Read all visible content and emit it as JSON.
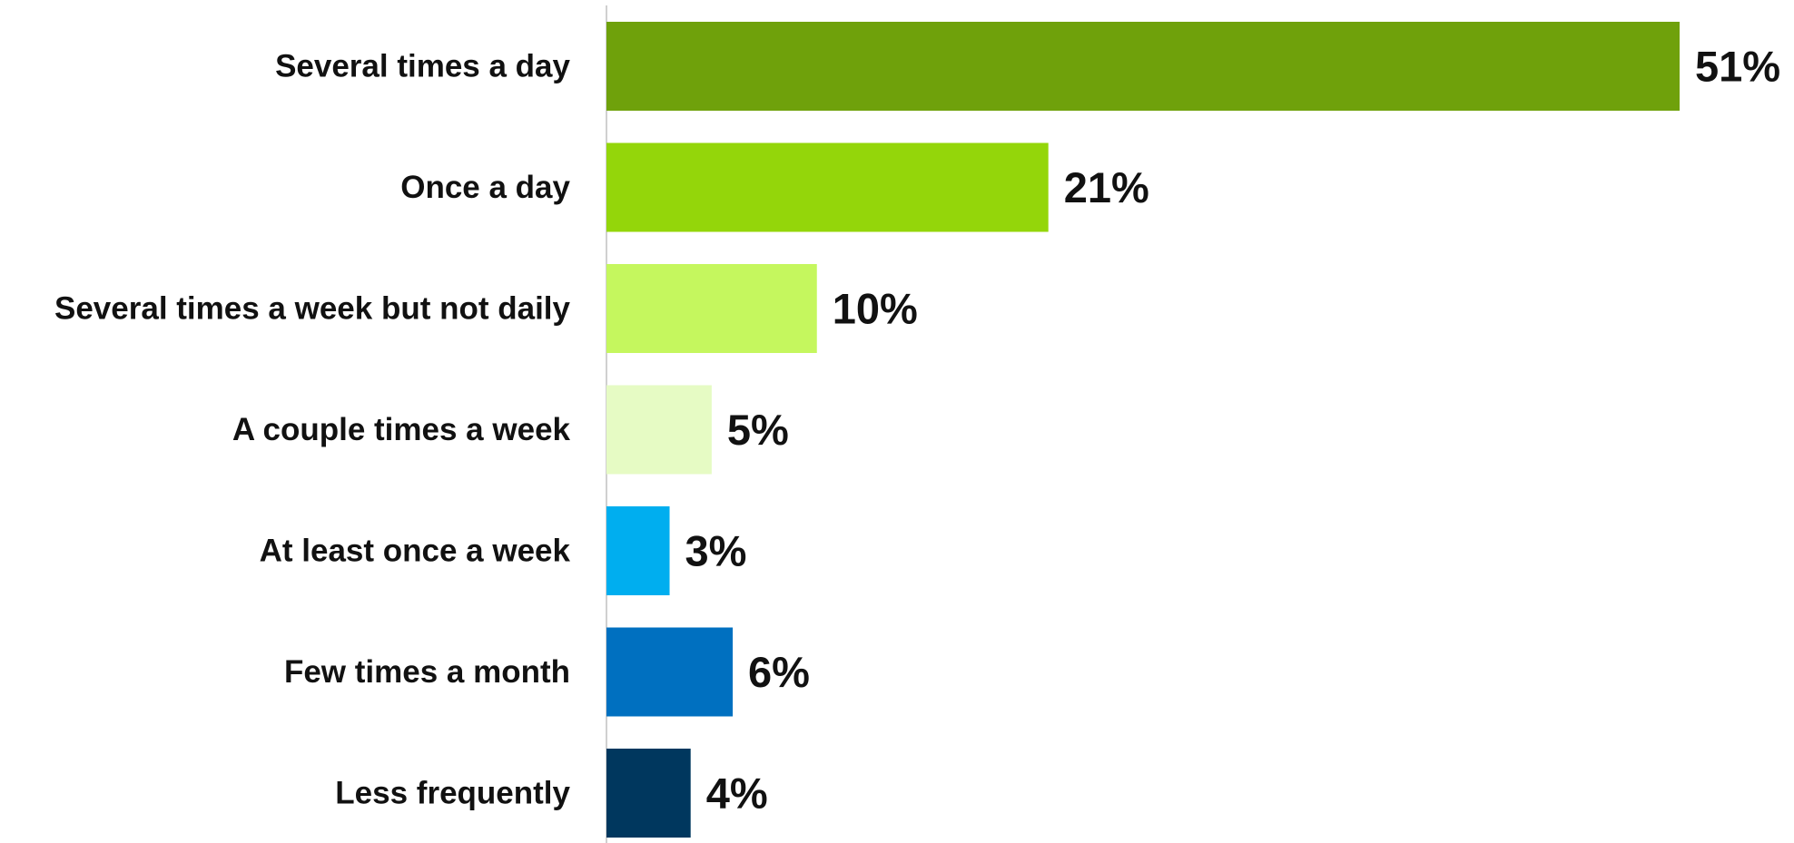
{
  "chart_data": {
    "type": "bar",
    "orientation": "horizontal",
    "categories": [
      "Several times a day",
      "Once a day",
      "Several times a week but not daily",
      "A couple times a week",
      "At least once a week",
      "Few times a month",
      "Less frequently"
    ],
    "values": [
      51,
      21,
      10,
      5,
      3,
      6,
      4
    ],
    "value_labels": [
      "51%",
      "21%",
      "10%",
      "5%",
      "3%",
      "6%",
      "4%"
    ],
    "colors": [
      "#6FA10B",
      "#94D60A",
      "#C5F75E",
      "#E6FBC4",
      "#00AEEF",
      "#0070C0",
      "#00375E"
    ],
    "title": "",
    "xlabel": "",
    "ylabel": "",
    "xlim": [
      0,
      51
    ],
    "grid": false,
    "legend": "none"
  }
}
